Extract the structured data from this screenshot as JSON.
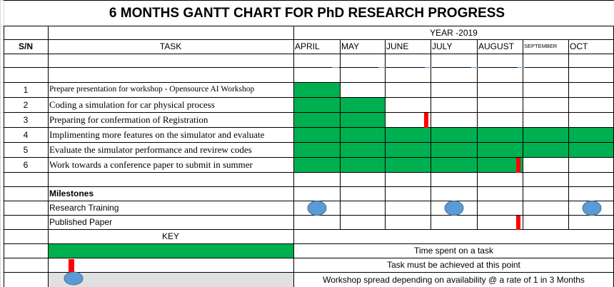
{
  "title": "6 MONTHS GANTT CHART FOR PhD RESEARCH PROGRESS",
  "year_label": "YEAR -2019",
  "headers": {
    "sn": "S/N",
    "task": "TASK"
  },
  "months": [
    "APRIL",
    "MAY",
    "JUNE",
    "JULY",
    "AUGUST",
    "SEPTEMBER",
    "OCT"
  ],
  "tasks": [
    {
      "sn": "1",
      "name": "Prepare presentation for workshop - Opensource AI Workshop"
    },
    {
      "sn": "2",
      "name": "Coding a simulation for car physical process"
    },
    {
      "sn": "3",
      "name": "Preparing for confermation of Registration"
    },
    {
      "sn": "4",
      "name": "Implimenting more features on the simulator and evaluate"
    },
    {
      "sn": "5",
      "name": "Evaluate the simulator performance and revirew codes"
    },
    {
      "sn": "6",
      "name": "Work towards a conference paper to submit in summer"
    }
  ],
  "task_bars": [
    {
      "task": 0,
      "start_month": 0,
      "end_month": 0
    },
    {
      "task": 1,
      "start_month": 0,
      "end_month": 1
    },
    {
      "task": 2,
      "start_month": 0,
      "end_month": 1
    },
    {
      "task": 3,
      "start_month": 0,
      "end_month": 6
    },
    {
      "task": 4,
      "start_month": 0,
      "end_month": 6
    },
    {
      "task": 5,
      "start_month": 0,
      "end_month": 4
    }
  ],
  "deadline_markers": [
    {
      "row": "task",
      "index": 2,
      "month": "JUNE"
    },
    {
      "row": "task",
      "index": 5,
      "month": "AUGUST"
    },
    {
      "row": "milestone",
      "index": 1,
      "month": "AUGUST"
    }
  ],
  "milestones_heading": "Milestones",
  "milestones": [
    {
      "name": "Research Training",
      "workshop_months": [
        "APRIL",
        "JULY",
        "OCT"
      ]
    },
    {
      "name": "Published Paper"
    }
  ],
  "key": {
    "heading": "KEY",
    "items": [
      {
        "symbol": "green-bar",
        "text": "Time spent on a task"
      },
      {
        "symbol": "red-marker",
        "text": "Task must be achieved at this point"
      },
      {
        "symbol": "blue-oval",
        "text": "Workshop spread depending on availability @ a rate of 1 in 3 Months"
      }
    ]
  },
  "colors": {
    "task_fill": "#00b050",
    "deadline_marker": "#ff0000",
    "workshop_oval": "#5b9bd5",
    "grid_line": "#000000",
    "faint_grid": "#d9d9d9",
    "key_row_fill": "#e0e0e0"
  }
}
